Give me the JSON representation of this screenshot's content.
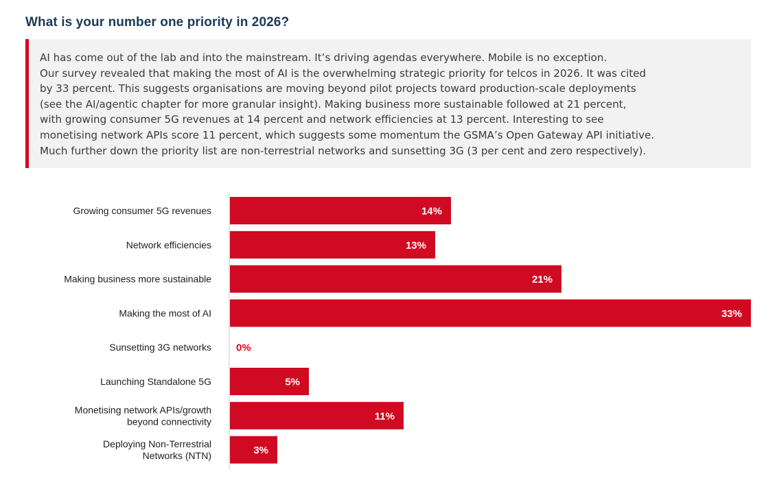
{
  "header": {
    "title": "What is your number one priority in 2026?"
  },
  "intro": {
    "text": "AI has come out of the lab and into the mainstream. It’s driving agendas everywhere. Mobile is no exception.\nOur survey revealed that making the most of AI is the overwhelming strategic priority for telcos in 2026. It was cited\nby 33 percent. This suggests organisations are moving beyond pilot projects toward production-scale deployments\n(see the AI/agentic chapter for more granular insight). Making business more sustainable followed at 21 percent,\nwith growing consumer 5G revenues at 14 percent and network efficiencies at 13 percent. Interesting to see\nmonetising network APIs score 11 percent, which suggests some momentum the GSMA’s Open Gateway API initiative.\nMuch further down the priority list are non-terrestrial networks and sunsetting 3G (3 per cent and zero respectively)."
  },
  "colors": {
    "bar": "#d00a22",
    "bar_label_text": "#ffffff",
    "zero_label_text": "#d00a22",
    "axis": "#c8c8c8",
    "accent": "#d00a22"
  },
  "chart_data": {
    "type": "bar",
    "orientation": "horizontal",
    "title": "What is your number one priority in 2026?",
    "xlabel": "",
    "ylabel": "",
    "xlim": [
      0,
      33
    ],
    "grid": false,
    "legend": "none",
    "value_suffix": "%",
    "categories": [
      [
        "Growing consumer 5G revenues"
      ],
      [
        "Network efficiencies"
      ],
      [
        "Making business more sustainable"
      ],
      [
        "Making the most of AI"
      ],
      [
        "Sunsetting 3G networks"
      ],
      [
        "Launching Standalone 5G"
      ],
      [
        "Monetising network APIs/growth",
        "beyond connectivity"
      ],
      [
        "Deploying Non-Terrestrial",
        "Networks (NTN)"
      ]
    ],
    "values": [
      14,
      13,
      21,
      33,
      0,
      5,
      11,
      3
    ]
  }
}
